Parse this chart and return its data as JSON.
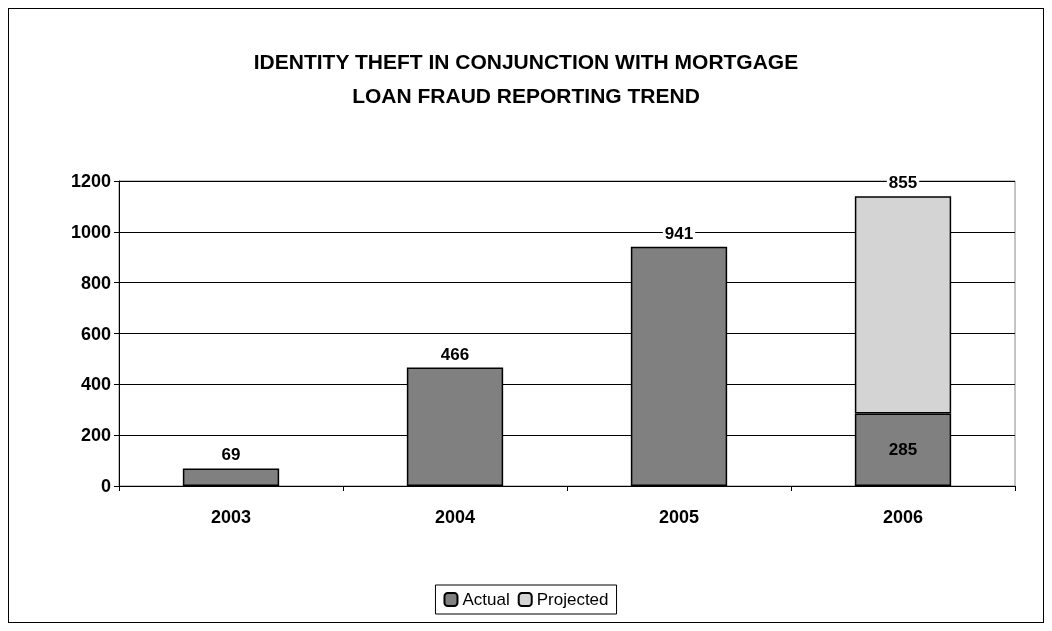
{
  "chart_data": {
    "type": "bar",
    "title": "IDENTITY THEFT IN CONJUNCTION WITH MORTGAGE\nLOAN FRAUD REPORTING TREND",
    "categories": [
      "2003",
      "2004",
      "2005",
      "2006"
    ],
    "stacked": true,
    "series": [
      {
        "name": "Actual",
        "color": "#808080",
        "values": [
          69,
          466,
          941,
          285
        ]
      },
      {
        "name": "Projected",
        "color": "#d4d4d4",
        "values": [
          null,
          null,
          null,
          855
        ]
      }
    ],
    "ylim": [
      0,
      1200
    ],
    "yticks": [
      0,
      200,
      400,
      600,
      800,
      1000,
      1200
    ],
    "grid": "y",
    "legend": "bottom",
    "data_labels": true
  }
}
